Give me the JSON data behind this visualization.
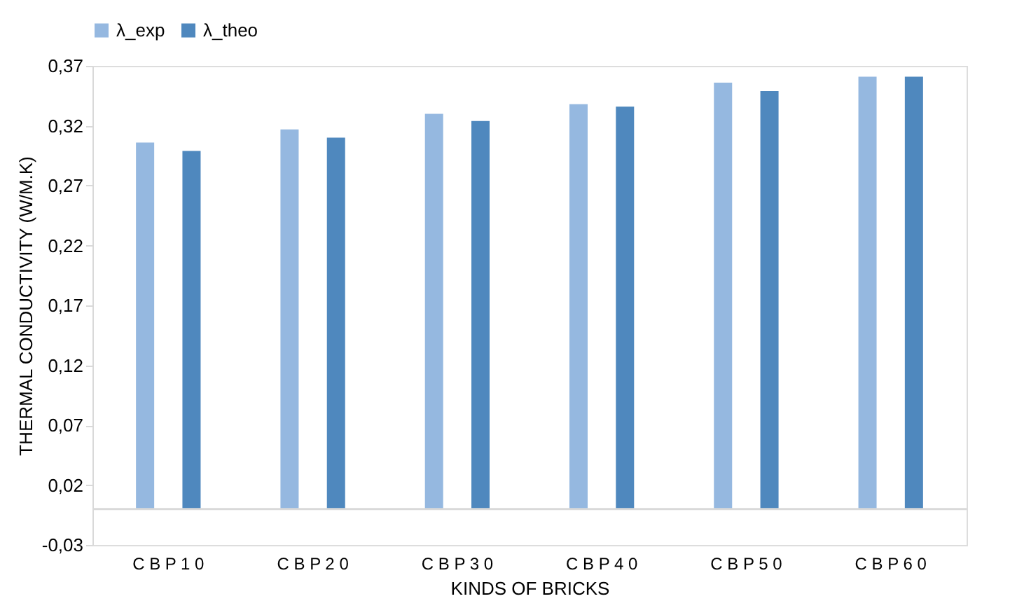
{
  "chart_data": {
    "type": "bar",
    "xlabel": "KINDS OF BRICKS",
    "ylabel": "THERMAL CONDUCTIVITY (W/M.K)",
    "categories": [
      "C B P 1 0",
      "C B P 2 0",
      "C B P 3 0",
      "C B P 4 0",
      "C B P 5 0",
      "C B P 6 0"
    ],
    "series": [
      {
        "name": "λ_exp",
        "color": "#95b8e0",
        "values": [
          0.306,
          0.317,
          0.33,
          0.338,
          0.356,
          0.361
        ]
      },
      {
        "name": "λ_theo",
        "color": "#4f88be",
        "values": [
          0.299,
          0.31,
          0.324,
          0.336,
          0.349,
          0.361
        ]
      }
    ],
    "ylim": [
      -0.03,
      0.37
    ],
    "yticks": [
      {
        "value": -0.03,
        "label": "-0,03"
      },
      {
        "value": 0.02,
        "label": "0,02"
      },
      {
        "value": 0.07,
        "label": "0,07"
      },
      {
        "value": 0.12,
        "label": "0,12"
      },
      {
        "value": 0.17,
        "label": "0,17"
      },
      {
        "value": 0.22,
        "label": "0,22"
      },
      {
        "value": 0.27,
        "label": "0,27"
      },
      {
        "value": 0.32,
        "label": "0,32"
      },
      {
        "value": 0.37,
        "label": "0,37"
      }
    ],
    "ref_lines": [
      {
        "axis": "y",
        "value": 0,
        "color": "#d9d9d9"
      }
    ],
    "grid": false,
    "legend": "top"
  }
}
